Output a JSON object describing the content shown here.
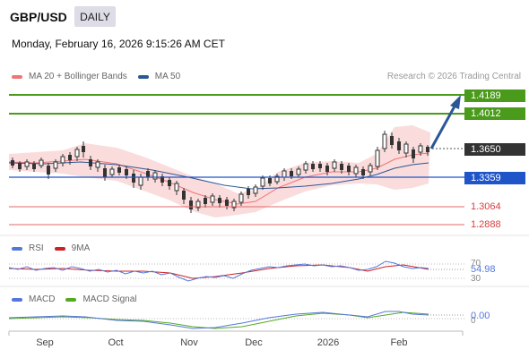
{
  "header": {
    "symbol": "GBP/USD",
    "period": "DAILY",
    "datetime": "Monday, February 16, 2026 9:15:26 AM CET"
  },
  "legend": {
    "bollinger_label": "MA 20 + Bollinger Bands",
    "bollinger_color": "#f07575",
    "ma50_label": "MA 50",
    "ma50_color": "#2b5797"
  },
  "credit": "Research © 2026 Trading Central",
  "levels": {
    "r2": "1.4189",
    "r1": "1.4012",
    "current": "1.3650",
    "pivot": "1.3359",
    "s1": "1.3064",
    "s2": "1.2888",
    "resistance_color": "#4a9a1c",
    "pivot_color": "#1f55c8",
    "support_color": "#d94040",
    "current_color": "#333333"
  },
  "rsi": {
    "label": "RSI",
    "color": "#5577dd",
    "signal_label": "9MA",
    "signal_color": "#cc2222",
    "value": "54.98",
    "upper": "70",
    "lower": "30"
  },
  "macd": {
    "label": "MACD",
    "color": "#5577dd",
    "signal_label": "MACD Signal",
    "signal_color": "#55aa22",
    "value": "0.00",
    "zero": "0"
  },
  "x_axis": {
    "labels": [
      "Sep",
      "Oct",
      "Nov",
      "Dec",
      "2026",
      "Feb"
    ]
  }
}
